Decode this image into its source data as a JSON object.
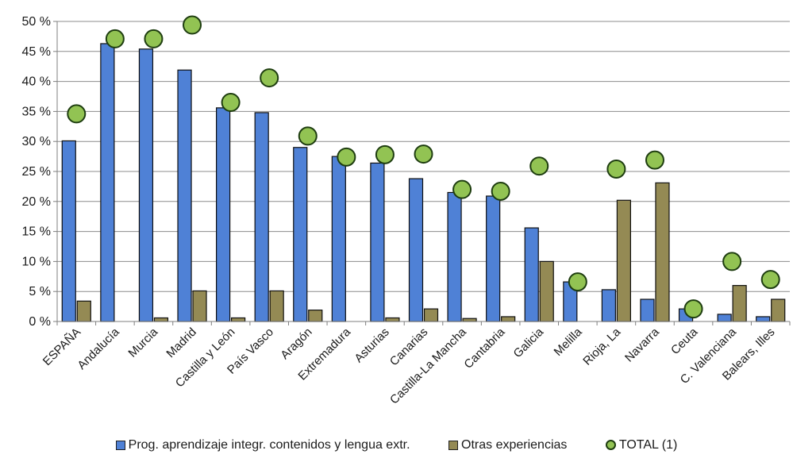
{
  "chart_data": {
    "type": "bar",
    "categories": [
      "ESPAÑA",
      "Andalucía",
      "Murcia",
      "Madrid",
      "Castilla y León",
      "País Vasco",
      "Aragón",
      "Extremadura",
      "Asturias",
      "Canarias",
      "Castilla-La Mancha",
      "Cantabria",
      "Galicia",
      "Melilla",
      "Rioja, La",
      "Navarra",
      "Ceuta",
      "C. Valenciana",
      "Balears, Illes"
    ],
    "series": [
      {
        "name": "Prog. aprendizaje integr. contenidos y lengua extr.",
        "kind": "bar",
        "color": "#4f81d6",
        "values": [
          30.1,
          46.3,
          45.4,
          41.9,
          35.6,
          34.8,
          29.0,
          27.5,
          26.4,
          23.8,
          21.5,
          20.9,
          15.6,
          6.6,
          5.3,
          3.7,
          2.1,
          1.2,
          0.8
        ]
      },
      {
        "name": "Otras experiencias",
        "kind": "bar",
        "color": "#948a54",
        "values": [
          3.4,
          0,
          0.6,
          5.1,
          0.6,
          5.1,
          1.9,
          0,
          0.6,
          2.1,
          0.5,
          0.8,
          10.0,
          0,
          20.2,
          23.1,
          0,
          6.0,
          3.7
        ]
      },
      {
        "name": "TOTAL (1)",
        "kind": "marker",
        "color": "#92c353",
        "values": [
          34.6,
          47.1,
          47.1,
          49.4,
          36.5,
          40.6,
          30.9,
          27.4,
          27.8,
          27.9,
          22.0,
          21.7,
          25.9,
          6.6,
          25.4,
          26.9,
          2.1,
          10.0,
          7.0
        ]
      }
    ],
    "ylim": [
      0,
      50
    ],
    "yticks": [
      0,
      5,
      10,
      15,
      20,
      25,
      30,
      35,
      40,
      45,
      50
    ],
    "ytick_labels": [
      "0 %",
      "5 %",
      "10 %",
      "15 %",
      "20 %",
      "25 %",
      "30 %",
      "35 %",
      "40 %",
      "45 %",
      "50 %"
    ],
    "grid": true,
    "legend_position": "bottom",
    "title": "",
    "xlabel": "",
    "ylabel": ""
  }
}
